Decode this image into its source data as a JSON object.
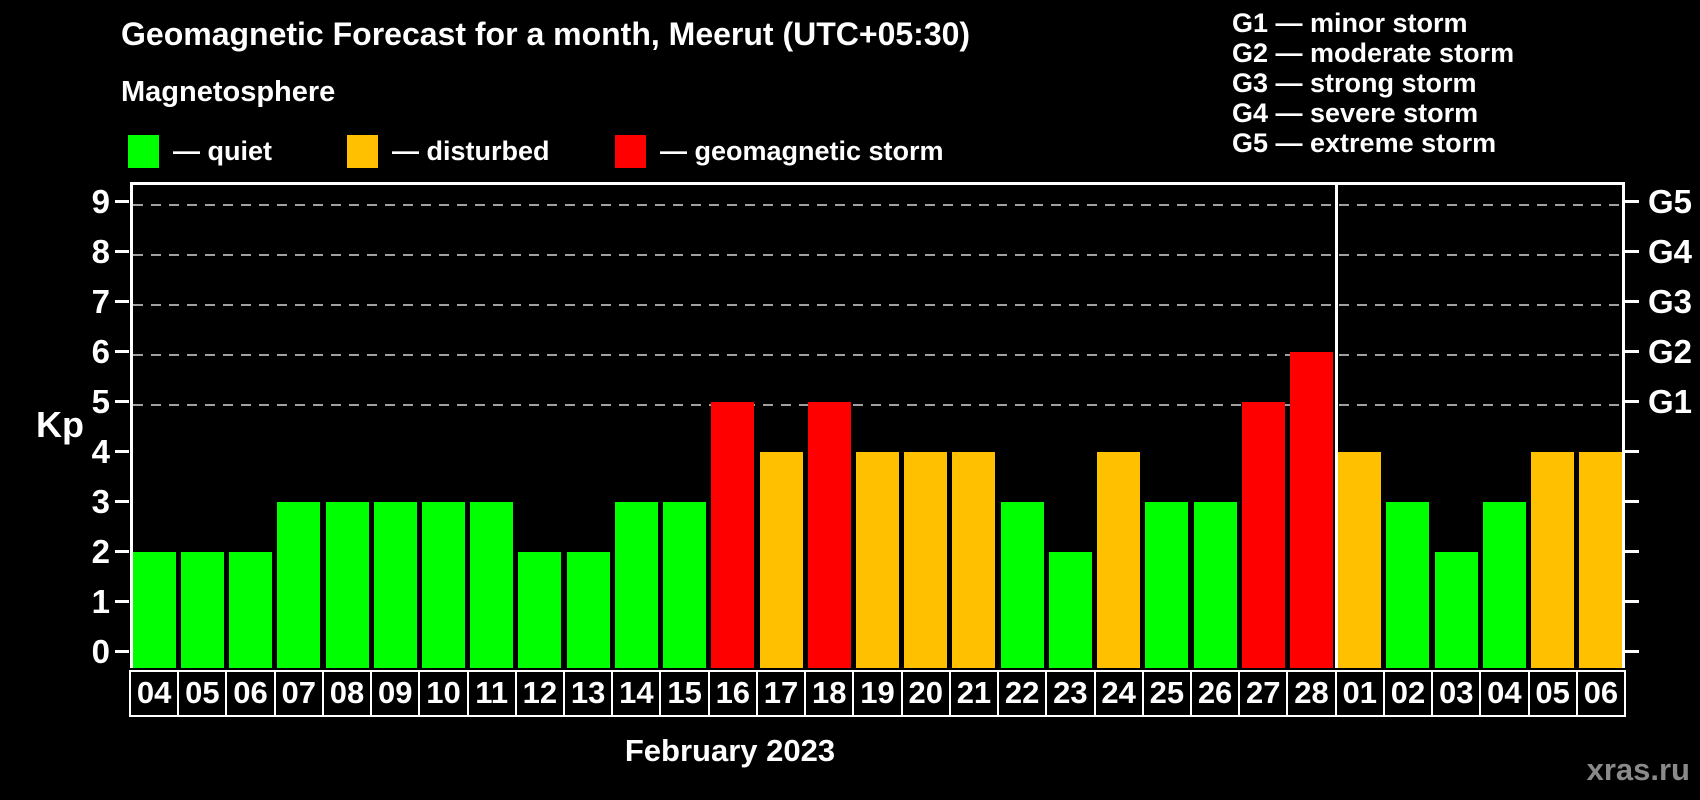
{
  "title": "Geomagnetic Forecast for a month, Meerut (UTC+05:30)",
  "subtitle": "Magnetosphere",
  "legend": {
    "items": [
      {
        "name": "quiet",
        "label": "— quiet",
        "color": "#00FF00"
      },
      {
        "name": "disturbed",
        "label": "— disturbed",
        "color": "#FFC000"
      },
      {
        "name": "geomagnetic-storm",
        "label": "— geomagnetic storm",
        "color": "#FF0000"
      }
    ]
  },
  "g_legend": {
    "lines": [
      "G1 — minor storm",
      "G2 — moderate storm",
      "G3 — strong storm",
      "G4 — severe storm",
      "G5 — extreme storm"
    ]
  },
  "watermark": "xras.ru",
  "chart_data": {
    "type": "bar",
    "title": "Geomagnetic Forecast for a month, Meerut (UTC+05:30)",
    "ylabel": "Kp",
    "xlabel": "February 2023",
    "categories": [
      "04",
      "05",
      "06",
      "07",
      "08",
      "09",
      "10",
      "11",
      "12",
      "13",
      "14",
      "15",
      "16",
      "17",
      "18",
      "19",
      "20",
      "21",
      "22",
      "23",
      "24",
      "25",
      "26",
      "27",
      "28",
      "01",
      "02",
      "03",
      "04",
      "05",
      "06"
    ],
    "values": [
      2,
      2,
      2,
      3,
      3,
      3,
      3,
      3,
      2,
      2,
      3,
      3,
      5,
      4,
      5,
      4,
      4,
      4,
      3,
      2,
      4,
      3,
      3,
      5,
      6,
      4,
      3,
      2,
      3,
      4,
      4
    ],
    "statuses": [
      "quiet",
      "quiet",
      "quiet",
      "quiet",
      "quiet",
      "quiet",
      "quiet",
      "quiet",
      "quiet",
      "quiet",
      "quiet",
      "quiet",
      "storm",
      "disturbed",
      "storm",
      "disturbed",
      "disturbed",
      "disturbed",
      "quiet",
      "quiet",
      "disturbed",
      "quiet",
      "quiet",
      "storm",
      "storm",
      "disturbed",
      "quiet",
      "quiet",
      "quiet",
      "disturbed",
      "disturbed"
    ],
    "colors": {
      "quiet": "#00FF00",
      "disturbed": "#FFC000",
      "storm": "#FF0000"
    },
    "y_ticks": [
      0,
      1,
      2,
      3,
      4,
      5,
      6,
      7,
      8,
      9
    ],
    "ylim": [
      -0.32,
      9.4
    ],
    "grid": "dashed at Kp 5-9",
    "gridlines_at_kp": [
      5,
      6,
      7,
      8,
      9
    ],
    "right_axis_labels": [
      {
        "kp": 5,
        "label": "G1"
      },
      {
        "kp": 6,
        "label": "G2"
      },
      {
        "kp": 7,
        "label": "G3"
      },
      {
        "kp": 8,
        "label": "G4"
      },
      {
        "kp": 9,
        "label": "G5"
      }
    ],
    "month_separator_after_category_index": 24,
    "legend_position": "top-left"
  }
}
